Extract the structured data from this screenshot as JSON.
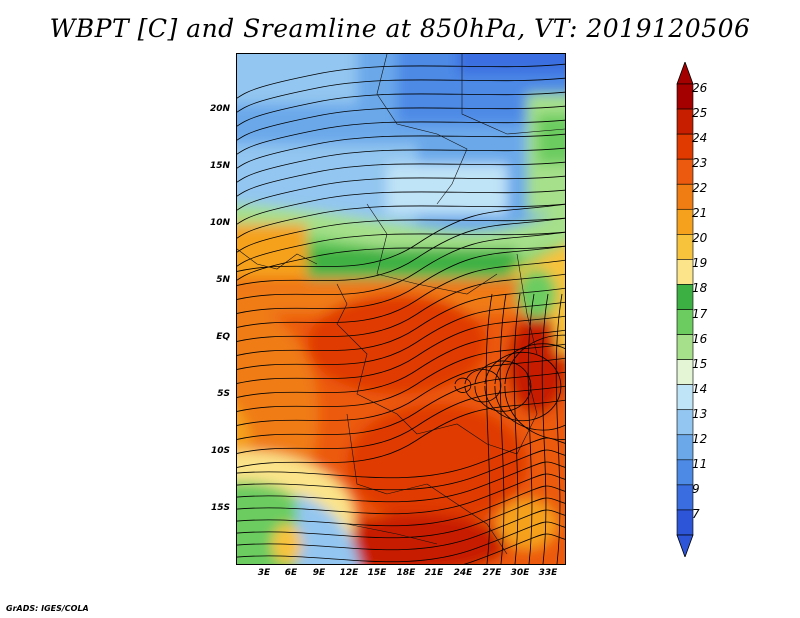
{
  "title": "WBPT [C] and Sreamline at 850hPa, VT: 2019120506",
  "credit": "GrADS: IGES/COLA",
  "map": {
    "lon_labels": [
      "3E",
      "6E",
      "9E",
      "12E",
      "15E",
      "18E",
      "21E",
      "24E",
      "27E",
      "30E",
      "33E"
    ],
    "lat_labels": [
      "20N",
      "15N",
      "10N",
      "5N",
      "EQ",
      "5S",
      "10S",
      "15S"
    ],
    "field": "wet-bulb potential temperature",
    "level": "850hPa",
    "valid_time": "2019120506",
    "overlay": "streamlines",
    "description_regions": {
      "north": "cool (9-14 C) blue shades",
      "sahel_band": "15-18 C green band near 8-12N",
      "equatorial": "warm 22-25 C orange-red over Congo basin and southern Africa"
    }
  },
  "colorbar": {
    "labels": [
      "26",
      "25",
      "24",
      "23",
      "22",
      "21",
      "20",
      "19",
      "18",
      "17",
      "16",
      "15",
      "14",
      "13",
      "12",
      "11",
      "9",
      "7"
    ],
    "colors": [
      "#a50000",
      "#c81e00",
      "#e03a00",
      "#ec5a10",
      "#f07c14",
      "#f5a11e",
      "#f8c33c",
      "#fbe48a",
      "#3cb043",
      "#6ccc60",
      "#a6e08a",
      "#e3f5d4",
      "#bfe3f7",
      "#93c6f0",
      "#6aa8ea",
      "#4d8ae6",
      "#3a6ee0",
      "#2d55d8"
    ],
    "orientation": "vertical",
    "extend": "both"
  }
}
